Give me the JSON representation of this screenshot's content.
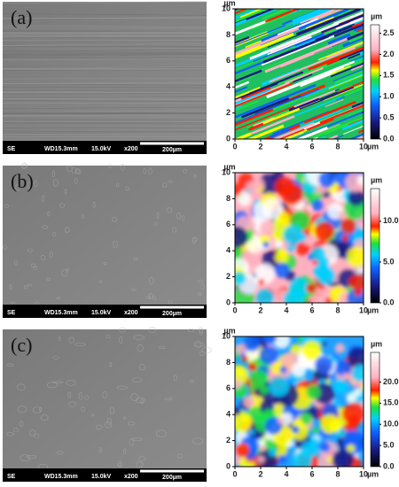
{
  "panels": [
    {
      "label": "(a)",
      "sem": {
        "detector": "SE",
        "wd": "WD15.3mm",
        "voltage": "15.0kV",
        "magnification": "x200",
        "scale": "200µm"
      },
      "afm": {
        "xlim": [
          0,
          10
        ],
        "ylim": [
          0,
          10
        ],
        "xticks": [
          0,
          2,
          4,
          6,
          8,
          10
        ],
        "yticks": [
          0,
          2,
          4,
          6,
          8,
          10
        ],
        "x_unit": "µm",
        "y_unit": "µm",
        "colorbar": {
          "unit": "µm",
          "lim": [
            0,
            2.7
          ],
          "ticks": [
            {
              "value": 0,
              "label": "0.0"
            },
            {
              "value": 0.5,
              "label": "0.5"
            },
            {
              "value": 1,
              "label": "1.0"
            },
            {
              "value": 1.5,
              "label": "1.5"
            },
            {
              "value": 2,
              "label": "2.0"
            },
            {
              "value": 2.5,
              "label": "2.5"
            }
          ]
        }
      }
    },
    {
      "label": "(b)",
      "sem": {
        "detector": "SE",
        "wd": "WD15.3mm",
        "voltage": "15.0kV",
        "magnification": "x200",
        "scale": "200µm"
      },
      "afm": {
        "xlim": [
          0,
          10
        ],
        "ylim": [
          0,
          10
        ],
        "xticks": [
          0,
          2,
          4,
          6,
          8,
          10
        ],
        "yticks": [
          0,
          2,
          4,
          6,
          8,
          10
        ],
        "x_unit": "µm",
        "y_unit": "µm",
        "colorbar": {
          "unit": "µm",
          "lim": [
            0,
            14
          ],
          "ticks": [
            {
              "value": 0,
              "label": "0.0"
            },
            {
              "value": 5,
              "label": "5.0"
            },
            {
              "value": 10,
              "label": "10.0"
            }
          ]
        }
      }
    },
    {
      "label": "(c)",
      "sem": {
        "detector": "SE",
        "wd": "WD15.3mm",
        "voltage": "15.0kV",
        "magnification": "x200",
        "scale": "200µm"
      },
      "afm": {
        "xlim": [
          0,
          10
        ],
        "ylim": [
          0,
          10
        ],
        "xticks": [
          0,
          2,
          4,
          6,
          8,
          10
        ],
        "yticks": [
          0,
          2,
          4,
          6,
          8,
          10
        ],
        "x_unit": "µm",
        "y_unit": "µm",
        "colorbar": {
          "unit": "µm",
          "lim": [
            0,
            27
          ],
          "ticks": [
            {
              "value": 0,
              "label": "0.0"
            },
            {
              "value": 5,
              "label": "5.0"
            },
            {
              "value": 10,
              "label": "10.0"
            },
            {
              "value": 15,
              "label": "15.0"
            },
            {
              "value": 20,
              "label": "20.0"
            }
          ]
        }
      }
    }
  ]
}
